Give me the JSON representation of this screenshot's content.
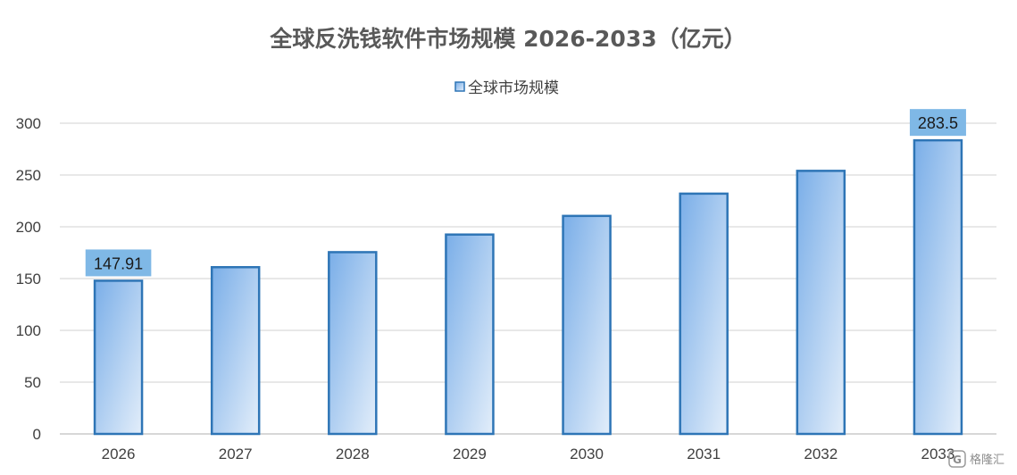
{
  "chart_data": {
    "type": "bar",
    "title": "全球反洗钱软件市场规模 2026-2033（亿元）",
    "legend": {
      "position": "top",
      "entries": [
        "全球市场规模"
      ]
    },
    "categories": [
      "2026",
      "2027",
      "2028",
      "2029",
      "2030",
      "2031",
      "2032",
      "2033"
    ],
    "series": [
      {
        "name": "全球市场规模",
        "values": [
          147.91,
          161,
          175.5,
          192.5,
          210.5,
          232,
          254,
          283.5
        ]
      }
    ],
    "data_labels": [
      {
        "index": 0,
        "text": "147.91"
      },
      {
        "index": 7,
        "text": "283.5"
      }
    ],
    "ylim": [
      0,
      300
    ],
    "yticks": [
      0,
      50,
      100,
      150,
      200,
      250,
      300
    ],
    "grid": true,
    "xlabel": "",
    "ylabel": "",
    "colors": {
      "bar_stroke": "#2e75b6",
      "bar_fill_dark": "#7aaee8",
      "bar_fill_light": "#e3eefa",
      "label_bg": "#7fb8e6",
      "grid": "#d9d9d9"
    }
  },
  "watermark": {
    "text": "格隆汇",
    "icon": "gelonghui-logo-icon"
  }
}
